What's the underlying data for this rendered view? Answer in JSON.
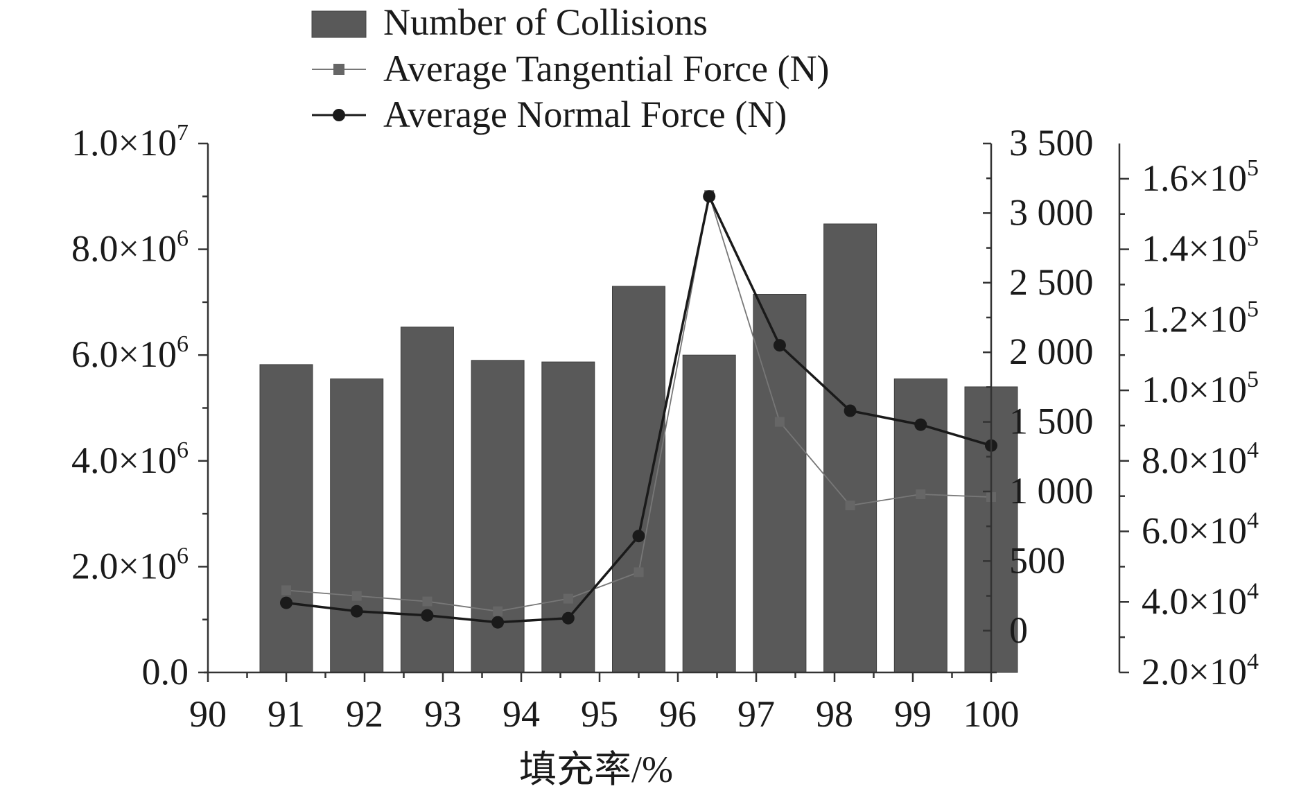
{
  "chart_data": {
    "type": "bar",
    "title": "",
    "xlabel": "填充率/%",
    "x_ticks": [
      90,
      91,
      92,
      93,
      94,
      95,
      96,
      97,
      98,
      99,
      100
    ],
    "xlim": [
      90,
      100
    ],
    "x": [
      91.0,
      91.9,
      92.8,
      93.7,
      94.6,
      95.5,
      96.4,
      97.3,
      98.2,
      99.1,
      100.0
    ],
    "legend_position": "top",
    "grid": false,
    "colors": {
      "bars": "#595959",
      "tangential": "#777777",
      "normal": "#1a1a1a"
    },
    "axes": {
      "left": {
        "ylim": [
          0,
          10000000
        ],
        "ticks": [
          0,
          2000000,
          4000000,
          6000000,
          8000000,
          10000000
        ],
        "tick_labels": [
          "0.0",
          "2.0×10^6",
          "4.0×10^6",
          "6.0×10^6",
          "8.0×10^6",
          "1.0×10^7"
        ]
      },
      "right1": {
        "ylim": [
          -300,
          3500
        ],
        "ticks": [
          0,
          500,
          1000,
          1500,
          2000,
          2500,
          3000,
          3500
        ],
        "tick_labels": [
          "0",
          "500",
          "1 000",
          "1 500",
          "2 000",
          "2 500",
          "3 000",
          "3 500"
        ]
      },
      "right2": {
        "ylim": [
          20000,
          170000
        ],
        "ticks": [
          20000,
          40000,
          60000,
          80000,
          100000,
          120000,
          140000,
          160000
        ],
        "tick_labels": [
          "2.0×10^4",
          "4.0×10^4",
          "6.0×10^4",
          "8.0×10^4",
          "1.0×10^5",
          "1.2×10^5",
          "1.4×10^5",
          "1.6×10^5"
        ]
      }
    },
    "series": [
      {
        "name": "Number of Collisions",
        "kind": "bar",
        "axis": "left",
        "values": [
          5820000,
          5550000,
          6530000,
          5900000,
          5870000,
          7300000,
          6000000,
          7150000,
          8480000,
          5550000,
          5400000
        ]
      },
      {
        "name": "Average Tangential Force (N)",
        "kind": "line",
        "marker": "square",
        "axis": "right1",
        "values": [
          290,
          250,
          210,
          140,
          230,
          420,
          3130,
          1500,
          900,
          980,
          960
        ]
      },
      {
        "name": "Average Normal Force (N)",
        "kind": "line",
        "marker": "circle",
        "axis": "right1",
        "values": [
          200,
          140,
          110,
          60,
          90,
          680,
          3120,
          2050,
          1580,
          1480,
          1330
        ]
      }
    ]
  }
}
